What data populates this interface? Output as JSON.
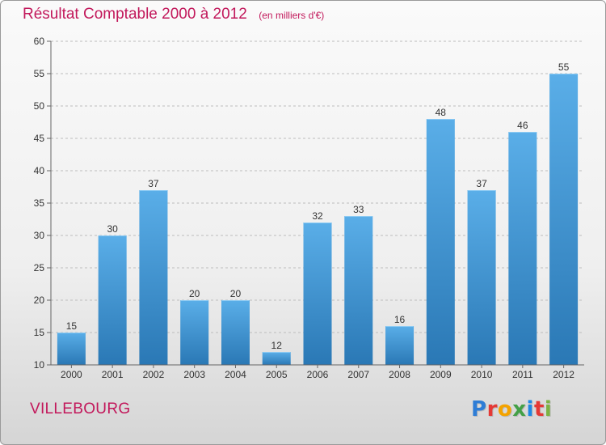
{
  "header": {
    "title": "Résultat Comptable 2000 à 2012",
    "subtitle": "(en milliers d'€)"
  },
  "footer": {
    "commune": "VILLEBOURG",
    "logo_text": "Proxiti",
    "logo_colors": [
      "#2e7dd6",
      "#e53935",
      "#f4a300",
      "#43a047",
      "#1e88e5",
      "#e53935",
      "#7cb342"
    ]
  },
  "colors": {
    "title": "#c2185b",
    "bar_light": "#5aaee8",
    "bar_dark": "#2a78b5",
    "grid": "#bdbdbd",
    "axis": "#666666"
  },
  "chart_data": {
    "type": "bar",
    "categories": [
      "2000",
      "2001",
      "2002",
      "2003",
      "2004",
      "2005",
      "2006",
      "2007",
      "2008",
      "2009",
      "2010",
      "2011",
      "2012"
    ],
    "values": [
      15,
      30,
      37,
      20,
      20,
      12,
      32,
      33,
      16,
      48,
      37,
      46,
      55
    ],
    "ylim": [
      10,
      60
    ],
    "yticks": [
      10,
      15,
      20,
      25,
      30,
      35,
      40,
      45,
      50,
      55,
      60
    ],
    "grid": "dashed horizontal",
    "xlabel": "",
    "ylabel": ""
  }
}
